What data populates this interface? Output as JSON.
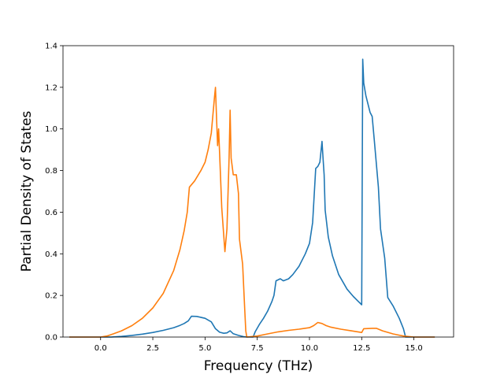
{
  "chart_data": {
    "type": "line",
    "title": "",
    "xlabel": "Frequency (THz)",
    "ylabel": "Partial Density of States",
    "xlim": [
      -1.8,
      16.9
    ],
    "ylim": [
      0,
      1.4
    ],
    "xticks": [
      0.0,
      2.5,
      5.0,
      7.5,
      10.0,
      12.5,
      15.0
    ],
    "xtick_labels": [
      "0.0",
      "2.5",
      "5.0",
      "7.5",
      "10.0",
      "12.5",
      "15.0"
    ],
    "yticks": [
      0.0,
      0.2,
      0.4,
      0.6,
      0.8,
      1.0,
      1.2,
      1.4
    ],
    "ytick_labels": [
      "0.0",
      "0.2",
      "0.4",
      "0.6",
      "0.8",
      "1.0",
      "1.2",
      "1.4"
    ],
    "grid": false,
    "legend": "none",
    "series": [
      {
        "color": "#1f77b4",
        "x": [
          -1.5,
          0.5,
          1.0,
          1.5,
          2.0,
          2.5,
          3.0,
          3.5,
          3.8,
          4.0,
          4.2,
          4.35,
          4.6,
          5.0,
          5.3,
          5.5,
          5.7,
          5.9,
          6.05,
          6.2,
          6.35,
          6.6,
          6.85,
          7.0,
          7.3,
          7.4,
          7.6,
          7.8,
          8.0,
          8.2,
          8.3,
          8.4,
          8.6,
          8.75,
          9.0,
          9.2,
          9.5,
          9.8,
          10.0,
          10.15,
          10.3,
          10.4,
          10.5,
          10.6,
          10.65,
          10.7,
          10.75,
          10.9,
          11.1,
          11.4,
          11.8,
          12.1,
          12.3,
          12.5,
          12.55,
          12.6,
          12.7,
          12.9,
          13.0,
          13.1,
          13.3,
          13.4,
          13.6,
          13.75,
          14.0,
          14.3,
          14.5,
          14.6,
          15.0,
          16.0
        ],
        "y": [
          0.0,
          0.0,
          0.003,
          0.008,
          0.014,
          0.022,
          0.032,
          0.045,
          0.056,
          0.065,
          0.078,
          0.1,
          0.099,
          0.09,
          0.073,
          0.04,
          0.023,
          0.018,
          0.02,
          0.03,
          0.016,
          0.008,
          0.002,
          0.0,
          0.0,
          0.025,
          0.06,
          0.09,
          0.125,
          0.17,
          0.2,
          0.27,
          0.28,
          0.27,
          0.28,
          0.3,
          0.34,
          0.4,
          0.45,
          0.55,
          0.81,
          0.82,
          0.84,
          0.94,
          0.86,
          0.78,
          0.61,
          0.48,
          0.39,
          0.3,
          0.23,
          0.195,
          0.175,
          0.155,
          1.335,
          1.22,
          1.16,
          1.08,
          1.06,
          0.95,
          0.72,
          0.52,
          0.38,
          0.19,
          0.15,
          0.09,
          0.04,
          0.0,
          0.0,
          0.0
        ]
      },
      {
        "color": "#ff7f0e",
        "x": [
          -1.5,
          0.0,
          0.3,
          0.6,
          1.0,
          1.5,
          2.0,
          2.5,
          3.0,
          3.5,
          3.8,
          4.0,
          4.15,
          4.25,
          4.5,
          4.8,
          5.0,
          5.15,
          5.3,
          5.45,
          5.5,
          5.55,
          5.6,
          5.65,
          5.7,
          5.8,
          5.95,
          6.05,
          6.15,
          6.2,
          6.25,
          6.35,
          6.5,
          6.6,
          6.65,
          6.8,
          6.9,
          6.95,
          7.0,
          7.5,
          8.0,
          8.5,
          9.0,
          9.5,
          10.0,
          10.2,
          10.4,
          10.6,
          10.8,
          11.0,
          11.5,
          12.0,
          12.5,
          12.6,
          13.0,
          13.2,
          13.5,
          14.0,
          14.5,
          15.0,
          16.0
        ],
        "y": [
          0.0,
          0.0,
          0.005,
          0.015,
          0.03,
          0.055,
          0.09,
          0.14,
          0.21,
          0.32,
          0.42,
          0.51,
          0.6,
          0.72,
          0.75,
          0.8,
          0.84,
          0.9,
          0.98,
          1.15,
          1.2,
          1.05,
          0.92,
          1.0,
          0.88,
          0.62,
          0.41,
          0.52,
          0.86,
          1.09,
          0.86,
          0.78,
          0.78,
          0.69,
          0.47,
          0.35,
          0.13,
          0.03,
          0.0,
          0.005,
          0.015,
          0.025,
          0.032,
          0.038,
          0.045,
          0.055,
          0.07,
          0.065,
          0.055,
          0.048,
          0.038,
          0.03,
          0.022,
          0.04,
          0.042,
          0.042,
          0.03,
          0.015,
          0.005,
          0.0,
          0.0
        ]
      }
    ]
  }
}
